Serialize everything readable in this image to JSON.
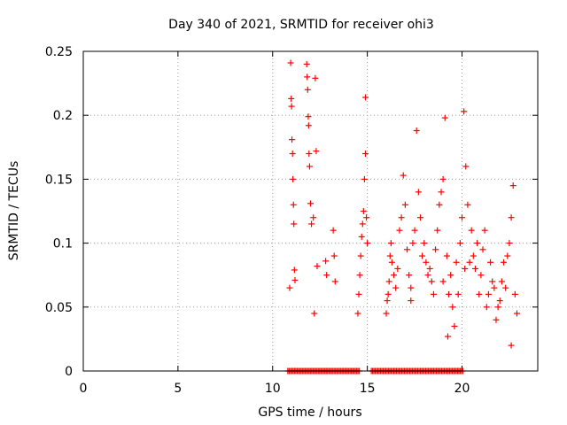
{
  "chart_data": {
    "type": "scatter",
    "title": "Day 340 of 2021, SRMTID for receiver ohi3",
    "xlabel": "GPS time / hours",
    "ylabel": "SRMTID / TECUs",
    "xlim": [
      0,
      24
    ],
    "ylim": [
      0,
      0.25
    ],
    "grid": true,
    "marker": "+",
    "color": "#ff0000",
    "xticks": [
      0,
      5,
      10,
      15,
      20
    ],
    "xtick_labels": [
      "0",
      "5",
      "10",
      "15",
      "20"
    ],
    "yticks": [
      0,
      0.05,
      0.1,
      0.15,
      0.2,
      0.25
    ],
    "ytick_labels": [
      "0",
      "0.05",
      "0.1",
      "0.15",
      "0.2",
      "0.25"
    ],
    "series": [
      {
        "name": "SRMTID",
        "x": [
          10.95,
          10.98,
          11.0,
          11.02,
          11.05,
          11.07,
          11.1,
          11.12,
          10.9,
          11.15,
          11.18,
          11.8,
          11.82,
          11.85,
          11.88,
          11.9,
          11.92,
          11.95,
          12.0,
          12.05,
          12.25,
          12.3,
          12.35,
          12.2,
          12.15,
          12.8,
          12.85,
          13.2,
          13.25,
          13.3,
          14.5,
          14.55,
          14.6,
          14.65,
          14.7,
          14.75,
          14.8,
          14.85,
          14.9,
          14.95,
          15.0,
          14.9,
          16.0,
          16.05,
          16.1,
          16.15,
          16.2,
          16.25,
          16.3,
          16.4,
          16.5,
          16.6,
          16.7,
          16.8,
          16.9,
          17.0,
          17.1,
          17.2,
          17.3,
          17.4,
          17.5,
          17.6,
          17.7,
          17.8,
          17.9,
          18.0,
          18.1,
          18.2,
          18.3,
          18.4,
          18.5,
          18.6,
          18.7,
          18.8,
          18.9,
          19.0,
          19.1,
          19.2,
          19.3,
          19.4,
          19.5,
          19.6,
          19.7,
          19.8,
          19.9,
          20.0,
          20.1,
          20.2,
          20.3,
          20.4,
          20.5,
          20.6,
          20.7,
          20.8,
          20.9,
          21.0,
          21.1,
          21.2,
          21.3,
          21.4,
          21.5,
          21.6,
          21.7,
          21.8,
          21.9,
          22.0,
          22.1,
          22.2,
          22.3,
          22.4,
          22.5,
          22.6,
          22.7,
          22.8,
          22.9,
          19.0,
          20.15,
          17.3,
          22.6,
          19.25
        ],
        "y": [
          0.241,
          0.213,
          0.207,
          0.181,
          0.17,
          0.15,
          0.13,
          0.115,
          0.065,
          0.079,
          0.071,
          0.24,
          0.23,
          0.22,
          0.199,
          0.192,
          0.17,
          0.16,
          0.131,
          0.115,
          0.229,
          0.172,
          0.082,
          0.045,
          0.12,
          0.086,
          0.075,
          0.11,
          0.09,
          0.07,
          0.045,
          0.06,
          0.075,
          0.09,
          0.105,
          0.115,
          0.125,
          0.15,
          0.17,
          0.12,
          0.1,
          0.214,
          0.045,
          0.055,
          0.06,
          0.07,
          0.09,
          0.1,
          0.085,
          0.075,
          0.065,
          0.08,
          0.11,
          0.12,
          0.153,
          0.13,
          0.095,
          0.075,
          0.065,
          0.1,
          0.11,
          0.188,
          0.14,
          0.12,
          0.09,
          0.1,
          0.085,
          0.075,
          0.08,
          0.07,
          0.06,
          0.095,
          0.11,
          0.13,
          0.14,
          0.15,
          0.198,
          0.09,
          0.06,
          0.075,
          0.05,
          0.035,
          0.085,
          0.06,
          0.1,
          0.12,
          0.203,
          0.16,
          0.13,
          0.085,
          0.11,
          0.09,
          0.08,
          0.1,
          0.06,
          0.075,
          0.095,
          0.11,
          0.05,
          0.06,
          0.085,
          0.07,
          0.065,
          0.04,
          0.05,
          0.055,
          0.07,
          0.085,
          0.065,
          0.09,
          0.1,
          0.12,
          0.145,
          0.06,
          0.045,
          0.07,
          0.08,
          0.055,
          0.02,
          0.027
        ],
        "zero_x_range": [
          10.8,
          20.1
        ]
      }
    ]
  }
}
